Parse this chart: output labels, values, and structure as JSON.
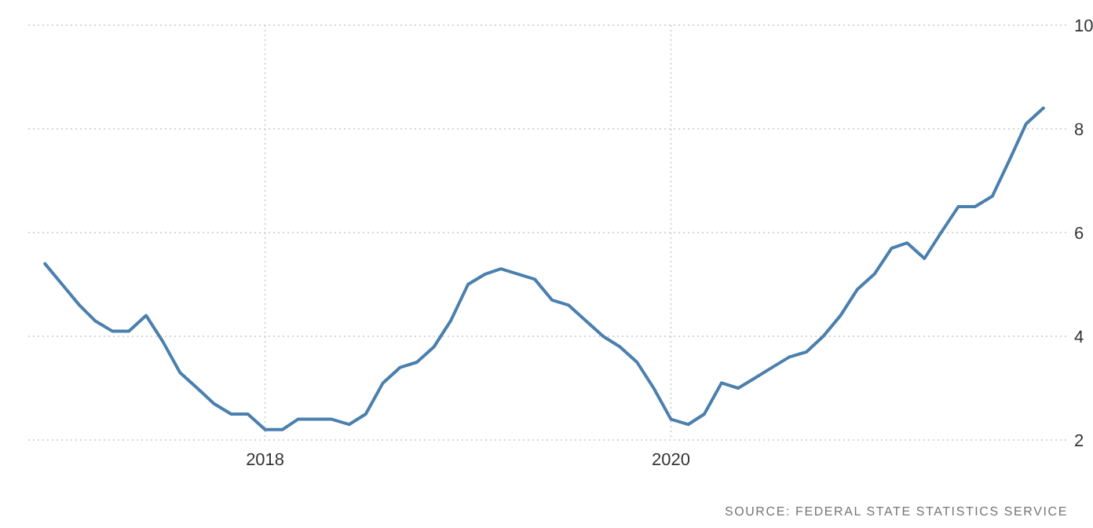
{
  "chart_data": {
    "type": "line",
    "x": [
      "2016-12",
      "2017-01",
      "2017-02",
      "2017-03",
      "2017-04",
      "2017-05",
      "2017-06",
      "2017-07",
      "2017-08",
      "2017-09",
      "2017-10",
      "2017-11",
      "2017-12",
      "2018-01",
      "2018-02",
      "2018-03",
      "2018-04",
      "2018-05",
      "2018-06",
      "2018-07",
      "2018-08",
      "2018-09",
      "2018-10",
      "2018-11",
      "2018-12",
      "2019-01",
      "2019-02",
      "2019-03",
      "2019-04",
      "2019-05",
      "2019-06",
      "2019-07",
      "2019-08",
      "2019-09",
      "2019-10",
      "2019-11",
      "2019-12",
      "2020-01",
      "2020-02",
      "2020-03",
      "2020-04",
      "2020-05",
      "2020-06",
      "2020-07",
      "2020-08",
      "2020-09",
      "2020-10",
      "2020-11",
      "2020-12",
      "2021-01",
      "2021-02",
      "2021-03",
      "2021-04",
      "2021-05",
      "2021-06",
      "2021-07",
      "2021-08",
      "2021-09",
      "2021-10",
      "2021-11"
    ],
    "series": [
      {
        "color": "#4a7fae",
        "values": [
          5.4,
          5.0,
          4.6,
          4.3,
          4.1,
          4.1,
          4.4,
          3.9,
          3.3,
          3.0,
          2.7,
          2.5,
          2.5,
          2.2,
          2.2,
          2.4,
          2.4,
          2.4,
          2.3,
          2.5,
          3.1,
          3.4,
          3.5,
          3.8,
          4.3,
          5.0,
          5.2,
          5.3,
          5.2,
          5.1,
          4.7,
          4.6,
          4.3,
          4.0,
          3.8,
          3.5,
          3.0,
          2.4,
          2.3,
          2.5,
          3.1,
          3.0,
          3.2,
          3.4,
          3.6,
          3.7,
          4.0,
          4.4,
          4.9,
          5.2,
          5.7,
          5.8,
          5.5,
          6.0,
          6.5,
          6.5,
          6.7,
          7.4,
          8.1,
          8.4
        ]
      }
    ],
    "xlim": [
      "2016-11-01",
      "2021-12-15"
    ],
    "xticks": [
      "2018",
      "2020"
    ],
    "ylim": [
      2,
      10
    ],
    "yticks": [
      2,
      4,
      6,
      8,
      10
    ],
    "grid": true,
    "annotations": [
      "SOURCE: FEDERAL STATE STATISTICS SERVICE"
    ]
  }
}
